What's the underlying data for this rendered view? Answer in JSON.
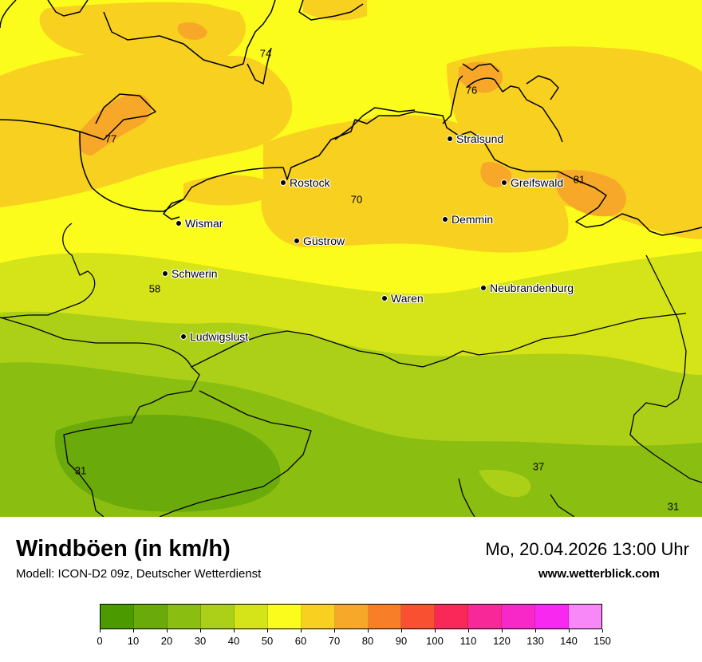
{
  "title": "Windböen (in km/h)",
  "model": "Modell: ICON-D2 09z, Deutscher Wetterdienst",
  "datetime": "Mo, 20.04.2026 13:00 Uhr",
  "website": "www.wetterblick.com",
  "cities": [
    {
      "name": "Stralsund"
    },
    {
      "name": "Rostock"
    },
    {
      "name": "Greifswald"
    },
    {
      "name": "Wismar"
    },
    {
      "name": "Demmin"
    },
    {
      "name": "Güstrow"
    },
    {
      "name": "Schwerin"
    },
    {
      "name": "Neubrandenburg"
    },
    {
      "name": "Waren"
    },
    {
      "name": "Ludwigslust"
    }
  ],
  "values": [
    "74",
    "76",
    "77",
    "81",
    "70",
    "58",
    "31",
    "37",
    "31"
  ],
  "colorbar": {
    "ticks": [
      "0",
      "10",
      "20",
      "30",
      "40",
      "50",
      "60",
      "70",
      "80",
      "90",
      "100",
      "110",
      "120",
      "130",
      "140",
      "150"
    ],
    "colors": [
      "#4a9a00",
      "#6aaa0a",
      "#8abe10",
      "#acd018",
      "#d4e418",
      "#fbfb1c",
      "#f8d020",
      "#f8a828",
      "#f87e28",
      "#f85030",
      "#f82858",
      "#f82898",
      "#f828c8",
      "#f828f0",
      "#f888f8"
    ]
  }
}
